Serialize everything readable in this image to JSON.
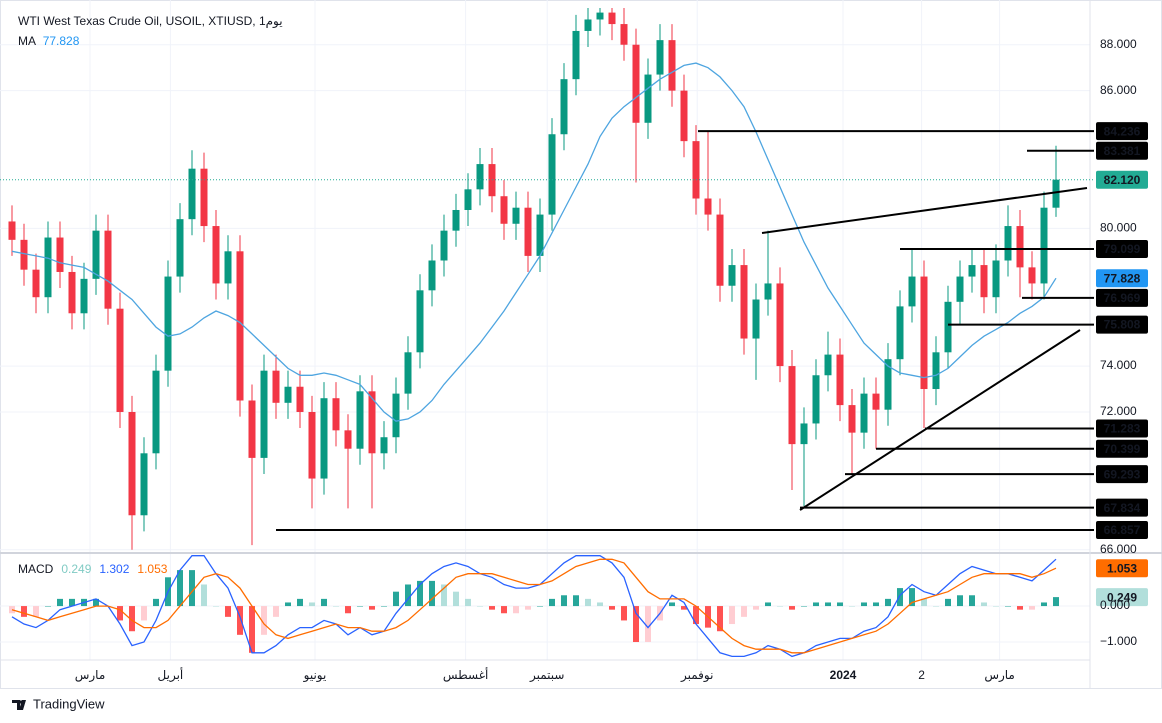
{
  "chart_data": {
    "type": "candlestick",
    "title": "WTI West Texas Crude Oil, USOIL, XTIUSD, 1يوم",
    "up_color": "#089981",
    "down_color": "#f23645",
    "open": [
      80.3,
      79.5,
      78.2,
      77.0,
      79.6,
      78.1,
      76.3,
      77.8,
      79.9,
      76.5,
      72.0,
      67.5,
      70.2,
      73.8,
      77.9,
      80.4,
      82.6,
      80.1,
      77.6,
      79.0,
      72.5,
      70.0,
      73.8,
      72.4,
      73.1,
      72.0,
      69.1,
      72.6,
      71.2,
      70.4,
      72.9,
      70.2,
      70.9,
      72.8,
      74.6,
      77.3,
      78.6,
      79.9,
      80.8,
      81.7,
      82.8,
      81.4,
      80.2,
      80.9,
      78.8,
      80.6,
      84.1,
      86.5,
      88.6,
      89.1,
      89.4,
      88.9,
      88.0,
      84.6,
      86.7,
      88.2,
      86.0,
      83.8,
      81.3,
      80.6,
      77.5,
      78.4,
      75.2,
      76.9,
      77.6,
      74.0,
      70.6,
      71.5,
      73.6,
      74.5,
      72.3,
      71.1,
      72.8,
      72.1,
      74.3,
      76.6,
      77.9,
      73.0,
      74.6,
      76.8,
      77.9,
      78.4,
      77.0,
      78.6,
      80.1,
      78.3,
      77.6,
      80.9
    ],
    "high": [
      81.0,
      80.2,
      78.9,
      80.3,
      80.3,
      78.8,
      78.5,
      80.6,
      80.6,
      77.2,
      72.7,
      70.9,
      74.5,
      78.6,
      81.1,
      83.4,
      83.3,
      80.8,
      79.7,
      79.7,
      73.2,
      74.5,
      74.5,
      73.8,
      73.8,
      72.7,
      73.3,
      73.3,
      71.9,
      73.6,
      73.6,
      71.6,
      73.5,
      75.3,
      78.0,
      79.3,
      80.6,
      81.5,
      82.4,
      83.5,
      83.5,
      82.1,
      81.6,
      81.6,
      81.3,
      84.8,
      87.2,
      89.3,
      89.6,
      89.6,
      89.6,
      89.6,
      88.7,
      87.4,
      88.9,
      88.9,
      86.7,
      84.5,
      84.2,
      81.3,
      79.1,
      79.1,
      77.6,
      79.9,
      78.3,
      74.7,
      72.2,
      74.3,
      75.5,
      75.2,
      73.0,
      73.5,
      73.5,
      75.0,
      77.3,
      79.1,
      78.6,
      75.3,
      77.5,
      78.6,
      79.1,
      79.1,
      79.3,
      81.0,
      80.8,
      79.0,
      81.6,
      83.6
    ],
    "low": [
      78.8,
      77.5,
      76.3,
      76.3,
      77.4,
      75.6,
      75.6,
      77.1,
      75.8,
      71.3,
      66.0,
      66.8,
      69.5,
      73.1,
      77.2,
      79.7,
      79.4,
      76.9,
      76.9,
      71.8,
      66.2,
      69.3,
      71.7,
      71.7,
      71.3,
      67.8,
      68.4,
      70.5,
      67.8,
      69.7,
      67.8,
      69.5,
      70.2,
      72.1,
      73.9,
      76.6,
      77.9,
      79.2,
      80.1,
      81.0,
      80.7,
      79.5,
      79.5,
      78.1,
      78.1,
      79.9,
      83.4,
      85.8,
      87.9,
      88.4,
      88.2,
      87.3,
      82.0,
      83.9,
      86.0,
      85.3,
      83.1,
      80.6,
      79.9,
      76.8,
      76.8,
      74.5,
      73.4,
      76.2,
      73.3,
      68.6,
      67.9,
      70.8,
      72.9,
      71.6,
      69.3,
      70.4,
      70.4,
      71.4,
      73.6,
      75.9,
      71.3,
      72.3,
      73.9,
      75.8,
      77.2,
      76.3,
      76.3,
      77.9,
      77.0,
      76.9,
      76.9,
      80.5
    ],
    "close": [
      79.5,
      78.2,
      77.0,
      79.6,
      78.1,
      76.3,
      77.8,
      79.9,
      76.5,
      72.0,
      67.5,
      70.2,
      73.8,
      77.9,
      80.4,
      82.6,
      80.1,
      77.6,
      79.0,
      72.5,
      70.0,
      73.8,
      72.4,
      73.1,
      72.0,
      69.1,
      72.6,
      71.2,
      70.4,
      72.9,
      70.2,
      70.9,
      72.8,
      74.6,
      77.3,
      78.6,
      79.9,
      80.8,
      81.7,
      82.8,
      81.4,
      80.2,
      80.9,
      78.8,
      80.6,
      84.1,
      86.5,
      88.6,
      89.1,
      89.4,
      88.9,
      88.0,
      84.6,
      86.7,
      88.2,
      86.0,
      83.8,
      81.3,
      80.6,
      77.5,
      78.4,
      75.2,
      76.9,
      77.6,
      74.0,
      70.6,
      71.5,
      73.6,
      74.5,
      72.3,
      71.1,
      72.8,
      72.1,
      74.3,
      76.6,
      77.9,
      73.0,
      74.6,
      76.8,
      77.9,
      78.4,
      77.0,
      78.6,
      80.1,
      78.3,
      77.6,
      80.9,
      82.12
    ],
    "ylim": [
      65.9,
      89.6
    ],
    "yticks": [
      {
        "value": 88,
        "label": "88.000"
      },
      {
        "value": 86,
        "label": "86.000"
      },
      {
        "value": 80,
        "label": "80.000"
      },
      {
        "value": 74,
        "label": "74.000"
      },
      {
        "value": 72,
        "label": "72.000"
      },
      {
        "value": 66,
        "label": "66.000"
      }
    ],
    "grid": true,
    "xticks": [
      {
        "value": 6.5,
        "label": "مارس"
      },
      {
        "value": 13.2,
        "label": "أبريل"
      },
      {
        "value": 25.25,
        "label": "يونيو"
      },
      {
        "value": 37.8,
        "label": "أغسطس"
      },
      {
        "value": 44.6,
        "label": "سبتمبر"
      },
      {
        "value": 57.1,
        "label": "نوفمبر"
      },
      {
        "value": 69.25,
        "label": "2024"
      },
      {
        "value": 75.8,
        "label": "2"
      },
      {
        "value": 82.3,
        "label": "مارس"
      }
    ],
    "ma": {
      "name": "MA",
      "color": "#4ea5e0",
      "values": [
        79.0,
        78.9,
        78.8,
        78.7,
        78.5,
        78.4,
        78.3,
        78.0,
        77.7,
        77.3,
        76.9,
        76.3,
        75.7,
        75.3,
        75.4,
        75.7,
        76.1,
        76.4,
        76.2,
        75.9,
        75.4,
        74.9,
        74.4,
        73.9,
        73.6,
        73.6,
        73.7,
        73.6,
        73.4,
        73.2,
        72.6,
        72.0,
        71.6,
        71.7,
        72.0,
        72.5,
        73.2,
        73.8,
        74.4,
        75.0,
        75.7,
        76.4,
        77.2,
        78.0,
        78.8,
        79.8,
        80.8,
        81.8,
        82.8,
        84.0,
        84.8,
        85.3,
        85.7,
        86.1,
        86.5,
        86.8,
        87.1,
        87.2,
        87.0,
        86.6,
        86.0,
        85.3,
        84.2,
        83.0,
        81.8,
        80.6,
        79.4,
        78.4,
        77.4,
        76.6,
        75.8,
        75.0,
        74.5,
        74.0,
        73.7,
        73.6,
        73.5,
        73.6,
        73.9,
        74.4,
        74.9,
        75.3,
        75.6,
        75.9,
        76.3,
        76.6,
        77.0,
        77.828
      ]
    },
    "price_line": {
      "value": 82.12,
      "label": "82.120",
      "color": "#22ab94"
    },
    "levels": [
      84.236,
      83.381,
      79.099,
      76.969,
      75.808,
      71.283,
      70.399,
      69.293,
      67.834,
      66.857
    ],
    "macd": {
      "name": "MACD",
      "ylim": [
        -1.5,
        1.42
      ],
      "yticks": [
        {
          "value": 0,
          "label": "0.000"
        },
        {
          "value": -1,
          "label": "−1.000"
        }
      ],
      "histogram": {
        "colors": [
          "#26a69a",
          "#b2dfdb",
          "#ff5252",
          "#ffcdd2"
        ],
        "values": [
          -0.2,
          -0.3,
          -0.3,
          0.0,
          0.2,
          0.2,
          0.2,
          0.2,
          0.0,
          -0.4,
          -0.7,
          -0.4,
          0.2,
          0.8,
          1.0,
          1.0,
          0.6,
          0.0,
          -0.3,
          -0.8,
          -1.3,
          -0.8,
          -0.3,
          0.1,
          0.2,
          0.1,
          0.2,
          0.0,
          -0.2,
          0.0,
          -0.1,
          0.0,
          0.4,
          0.6,
          0.7,
          0.7,
          0.6,
          0.4,
          0.2,
          0.0,
          -0.1,
          -0.2,
          -0.2,
          -0.1,
          0.0,
          0.2,
          0.3,
          0.3,
          0.2,
          0.1,
          -0.1,
          -0.4,
          -1.0,
          -1.0,
          -0.4,
          0.1,
          -0.1,
          -0.5,
          -0.6,
          -0.7,
          -0.5,
          -0.3,
          -0.1,
          0.1,
          0.0,
          -0.1,
          0.0,
          0.1,
          0.1,
          0.1,
          0.0,
          0.1,
          0.1,
          0.2,
          0.5,
          0.5,
          0.2,
          0.0,
          0.2,
          0.3,
          0.3,
          0.1,
          0.0,
          0.0,
          -0.1,
          -0.1,
          0.1,
          0.249
        ]
      },
      "macd": {
        "color": "#2962ff",
        "values": [
          -0.3,
          -0.5,
          -0.6,
          -0.4,
          -0.1,
          0.0,
          0.1,
          0.2,
          0.0,
          -0.5,
          -1.1,
          -1.0,
          -0.4,
          0.4,
          1.0,
          1.4,
          1.4,
          0.9,
          0.5,
          -0.3,
          -1.3,
          -1.3,
          -1.1,
          -0.8,
          -0.6,
          -0.6,
          -0.4,
          -0.5,
          -0.8,
          -0.6,
          -0.8,
          -0.7,
          -0.2,
          0.2,
          0.6,
          0.9,
          1.1,
          1.2,
          1.1,
          0.9,
          0.8,
          0.6,
          0.5,
          0.5,
          0.6,
          0.9,
          1.2,
          1.4,
          1.4,
          1.4,
          1.2,
          0.8,
          -0.2,
          -0.6,
          -0.2,
          0.3,
          0.1,
          -0.5,
          -0.9,
          -1.3,
          -1.4,
          -1.4,
          -1.3,
          -1.1,
          -1.2,
          -1.4,
          -1.3,
          -1.1,
          -1.0,
          -0.9,
          -0.9,
          -0.7,
          -0.6,
          -0.3,
          0.3,
          0.6,
          0.4,
          0.3,
          0.6,
          0.9,
          1.1,
          1.0,
          0.9,
          0.9,
          0.8,
          0.7,
          1.0,
          1.302
        ]
      },
      "signal": {
        "color": "#ff6d00",
        "values": [
          -0.1,
          -0.2,
          -0.3,
          -0.4,
          -0.3,
          -0.2,
          -0.1,
          0.0,
          0.0,
          -0.1,
          -0.4,
          -0.6,
          -0.6,
          -0.4,
          0.0,
          0.4,
          0.8,
          0.9,
          0.8,
          0.5,
          0.0,
          -0.5,
          -0.8,
          -0.9,
          -0.8,
          -0.7,
          -0.6,
          -0.5,
          -0.6,
          -0.6,
          -0.7,
          -0.7,
          -0.6,
          -0.4,
          -0.1,
          0.2,
          0.5,
          0.8,
          0.9,
          0.9,
          0.9,
          0.8,
          0.7,
          0.6,
          0.6,
          0.7,
          0.9,
          1.1,
          1.2,
          1.3,
          1.3,
          1.2,
          0.8,
          0.4,
          0.2,
          0.2,
          0.2,
          0.0,
          -0.3,
          -0.6,
          -0.9,
          -1.1,
          -1.2,
          -1.2,
          -1.2,
          -1.3,
          -1.3,
          -1.2,
          -1.1,
          -1.0,
          -0.9,
          -0.8,
          -0.7,
          -0.5,
          -0.2,
          0.1,
          0.2,
          0.3,
          0.4,
          0.6,
          0.8,
          0.9,
          0.9,
          0.9,
          0.9,
          0.8,
          0.9,
          1.053
        ]
      }
    },
    "footer": "TradingView"
  }
}
